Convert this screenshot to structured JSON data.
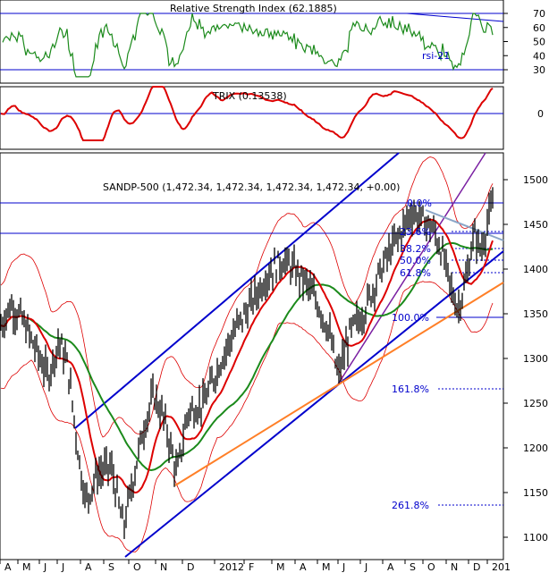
{
  "chart_data": [
    {
      "type": "line",
      "title": "Relative Strength Index (62.1885)",
      "series": [
        {
          "name": "rsi-21"
        }
      ],
      "ylim": [
        20,
        75
      ],
      "yticks": [
        30,
        40,
        50,
        60,
        70
      ],
      "reference_lines": [
        70,
        30
      ],
      "colors": {
        "rsi": "#1b8a1b",
        "ref": "#0000cc"
      }
    },
    {
      "type": "line",
      "title": "TRIX (0.13538)",
      "yticks": [
        0
      ],
      "ylim": [
        -0.3,
        0.3
      ],
      "colors": {
        "trix": "#dd0000"
      }
    },
    {
      "type": "line",
      "title": "SANDP-500 (1,472.34, 1,472.34, 1,472.34, 1,472.34, +0.00)",
      "ylim": [
        1075,
        1530
      ],
      "yticks": [
        1100,
        1150,
        1200,
        1250,
        1300,
        1350,
        1400,
        1450,
        1500
      ],
      "x_tick_labels": [
        "A",
        "M",
        "J",
        "J",
        "A",
        "S",
        "O",
        "N",
        "D",
        "2012",
        "F",
        "M",
        "A",
        "M",
        "J",
        "J",
        "A",
        "S",
        "O",
        "N",
        "D",
        "201"
      ],
      "fibonacci": [
        {
          "label": "0.0%",
          "value": 1474
        },
        {
          "label": "23.6%",
          "value": 1442
        },
        {
          "label": "38.2%",
          "value": 1423
        },
        {
          "label": "50.0%",
          "value": 1410
        },
        {
          "label": "61.8%",
          "value": 1396
        },
        {
          "label": "100.0%",
          "value": 1346
        },
        {
          "label": "161.8%",
          "value": 1266
        },
        {
          "label": "261.8%",
          "value": 1136
        }
      ],
      "horizontal_lines": [
        1474,
        1440
      ],
      "colors": {
        "price": "#000000",
        "ma_red": "#dd0000",
        "ma_green": "#1b8a1b",
        "bands": "#dd0000",
        "channel": "#0000cc",
        "support": "#ff7f27",
        "fib": "#0000cc",
        "trend_purple": "#7a1fa2"
      }
    }
  ]
}
